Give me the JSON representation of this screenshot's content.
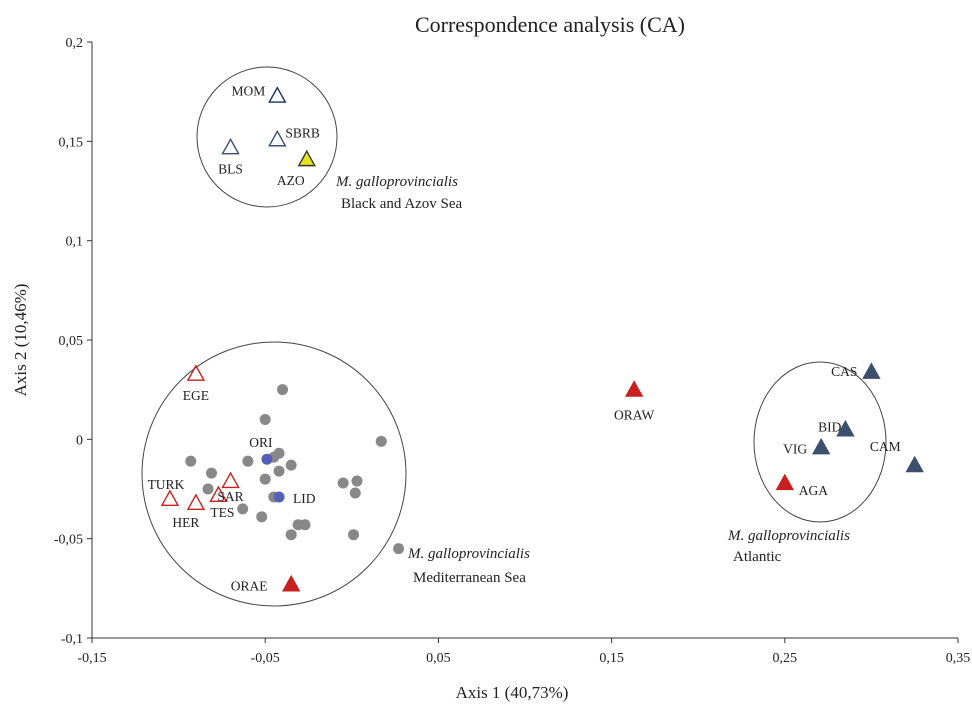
{
  "chart_data": {
    "type": "scatter",
    "title": "Correspondence analysis (CA)",
    "xlabel": "Axis 1 (40,73%)",
    "ylabel": "Axis 2 (10,46%)",
    "xlim": [
      -0.15,
      0.35
    ],
    "ylim": [
      -0.1,
      0.2
    ],
    "x_ticks": [
      "-0,15",
      "-0,05",
      "0,05",
      "0,15",
      "0,25",
      "0,35"
    ],
    "y_ticks": [
      "0,2",
      "0,15",
      "0,1",
      "0,05",
      "0",
      "-0,05",
      "-0,1"
    ],
    "grid": false,
    "colors": {
      "red": "#c8201f",
      "navy": "#1c2e6a",
      "slate": "#3c4f6d",
      "gray_dot": "#888888",
      "blue_dot": "#5561b8",
      "yellow": "#e9e31a",
      "black_stroke": "#333333"
    },
    "points": [
      {
        "label": "MOM",
        "x": -0.043,
        "y": 0.173,
        "style": "open-navy"
      },
      {
        "label": "SBRB",
        "x": -0.043,
        "y": 0.151,
        "style": "open-slate"
      },
      {
        "label": "BLS",
        "x": -0.07,
        "y": 0.147,
        "style": "open-slate"
      },
      {
        "label": "AZO",
        "x": -0.026,
        "y": 0.141,
        "style": "filled-yellow"
      },
      {
        "label": "EGE",
        "x": -0.09,
        "y": 0.033,
        "style": "open-red"
      },
      {
        "label": "TURK",
        "x": -0.105,
        "y": -0.03,
        "style": "open-red"
      },
      {
        "label": "HER",
        "x": -0.09,
        "y": -0.032,
        "style": "open-red"
      },
      {
        "label": "TES",
        "x": -0.077,
        "y": -0.028,
        "style": "open-red"
      },
      {
        "label": "SAR",
        "x": -0.07,
        "y": -0.021,
        "style": "open-red"
      },
      {
        "label": "ORI",
        "x": -0.049,
        "y": -0.01,
        "style": "blue-dot"
      },
      {
        "label": "LID",
        "x": -0.042,
        "y": -0.029,
        "style": "blue-dot"
      },
      {
        "label": "ORAE",
        "x": -0.035,
        "y": -0.073,
        "style": "filled-red"
      },
      {
        "label": "ORAW",
        "x": 0.163,
        "y": 0.025,
        "style": "filled-red"
      },
      {
        "label": "CAS",
        "x": 0.3,
        "y": 0.034,
        "style": "filled-slate"
      },
      {
        "label": "BID",
        "x": 0.285,
        "y": 0.005,
        "style": "filled-slate"
      },
      {
        "label": "VIG",
        "x": 0.271,
        "y": -0.004,
        "style": "filled-slate"
      },
      {
        "label": "CAM",
        "x": 0.325,
        "y": -0.013,
        "style": "filled-slate"
      },
      {
        "label": "AGA",
        "x": 0.25,
        "y": -0.022,
        "style": "filled-red"
      }
    ],
    "unlabeled_points": [
      {
        "x": -0.04,
        "y": 0.025
      },
      {
        "x": -0.05,
        "y": 0.01
      },
      {
        "x": -0.042,
        "y": -0.007
      },
      {
        "x": -0.045,
        "y": -0.009
      },
      {
        "x": -0.035,
        "y": -0.013
      },
      {
        "x": -0.06,
        "y": -0.011
      },
      {
        "x": -0.093,
        "y": -0.011
      },
      {
        "x": -0.081,
        "y": -0.017
      },
      {
        "x": -0.042,
        "y": -0.016
      },
      {
        "x": -0.083,
        "y": -0.025
      },
      {
        "x": -0.05,
        "y": -0.02
      },
      {
        "x": -0.045,
        "y": -0.029
      },
      {
        "x": -0.063,
        "y": -0.035
      },
      {
        "x": -0.052,
        "y": -0.039
      },
      {
        "x": -0.031,
        "y": -0.043
      },
      {
        "x": -0.027,
        "y": -0.043
      },
      {
        "x": -0.035,
        "y": -0.048
      },
      {
        "x": 0.017,
        "y": -0.001
      },
      {
        "x": -0.005,
        "y": -0.022
      },
      {
        "x": 0.003,
        "y": -0.021
      },
      {
        "x": 0.002,
        "y": -0.027
      },
      {
        "x": 0.001,
        "y": -0.048
      },
      {
        "x": 0.027,
        "y": -0.055
      }
    ],
    "annotations": [
      {
        "line1": "M. galloprovincialis",
        "line2": "Black and Azov Sea"
      },
      {
        "line1": "M. galloprovincialis",
        "line2": "Mediterranean Sea"
      },
      {
        "line1": "M. galloprovincialis",
        "line2": "Atlantic"
      }
    ]
  }
}
